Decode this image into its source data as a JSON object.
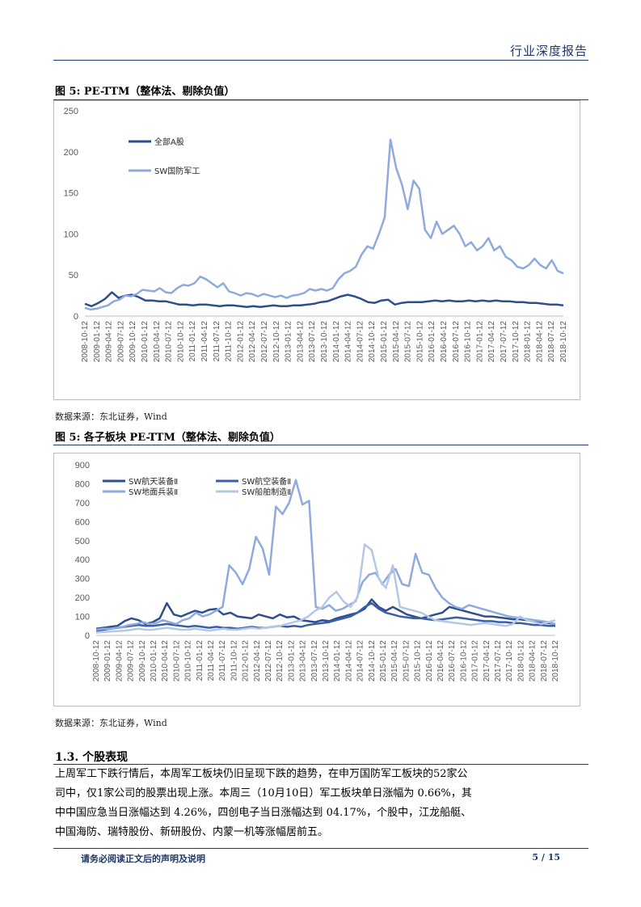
{
  "header": {
    "title": "行业深度报告"
  },
  "figure1": {
    "caption": "图 5:  PE-TTM（整体法、剔除负值）",
    "source": "数据来源：东北证券，Wind"
  },
  "figure2": {
    "caption": "图 5: 各子板块 PE-TTM（整体法、剔除负值）",
    "source": "数据来源：东北证券，Wind"
  },
  "section": {
    "heading": "1.3.  个股表现",
    "body": "上周军工下跌行情后，本周军工板块仍旧呈现下跌的趋势，在申万国防军工板块的52家公司中，仅1家公司的股票出现上涨。本周三（10月10日）军工板块单日涨幅为 0.66%，其中中国应急当日涨幅达到 4.26%，四创电子当日涨幅达到 04.17%，个股中，江龙船艇、中国海防、瑞特股份、新研股份、内蒙一机等涨幅居前五。"
  },
  "footer": {
    "disclaimer": "请务必阅读正文后的声明及说明",
    "page": "5 / 15"
  },
  "chart_data": [
    {
      "type": "line",
      "title": "",
      "ylim": [
        0,
        250
      ],
      "yticks": [
        0,
        50,
        100,
        150,
        200,
        250
      ],
      "x_labels": [
        "2008-10-12",
        "2009-01-12",
        "2009-04-12",
        "2009-07-12",
        "2009-10-12",
        "2010-01-12",
        "2010-04-12",
        "2010-07-12",
        "2010-10-12",
        "2011-01-12",
        "2011-04-12",
        "2011-07-12",
        "2011-10-12",
        "2012-01-12",
        "2012-04-12",
        "2012-07-12",
        "2012-10-12",
        "2013-01-12",
        "2013-04-12",
        "2013-07-12",
        "2013-10-12",
        "2014-01-12",
        "2014-04-12",
        "2014-07-12",
        "2014-10-12",
        "2015-01-12",
        "2015-04-12",
        "2015-07-12",
        "2015-10-12",
        "2016-01-12",
        "2016-04-12",
        "2016-07-12",
        "2016-10-12",
        "2017-01-12",
        "2017-04-12",
        "2017-07-12",
        "2017-10-12",
        "2018-01-12",
        "2018-04-12",
        "2018-07-12",
        "2018-10-12"
      ],
      "legend": "top-left",
      "series": [
        {
          "name": "全部A股",
          "color": "#2e4f8f",
          "values": [
            15,
            12,
            16,
            21,
            29,
            22,
            25,
            26,
            23,
            19,
            19,
            18,
            18,
            16,
            14,
            14,
            13,
            14,
            14,
            13,
            12,
            13,
            13,
            12,
            11,
            12,
            11,
            12,
            13,
            12,
            12,
            13,
            13,
            14,
            15,
            17,
            18,
            21,
            24,
            26,
            24,
            21,
            17,
            16,
            19,
            20,
            14,
            16,
            17,
            17,
            17,
            18,
            19,
            18,
            19,
            18,
            18,
            19,
            18,
            19,
            18,
            19,
            18,
            18,
            17,
            17,
            16,
            16,
            15,
            14,
            14,
            13
          ]
        },
        {
          "name": "SW国防军工",
          "color": "#8faadc",
          "values": [
            10,
            8,
            9,
            11,
            13,
            18,
            20,
            25,
            24,
            27,
            32,
            31,
            30,
            34,
            29,
            28,
            34,
            38,
            37,
            40,
            48,
            45,
            40,
            35,
            40,
            30,
            28,
            25,
            28,
            27,
            24,
            27,
            25,
            23,
            25,
            22,
            25,
            26,
            28,
            33,
            31,
            33,
            31,
            34,
            45,
            52,
            55,
            60,
            75,
            85,
            82,
            100,
            120,
            215,
            180,
            160,
            130,
            165,
            155,
            105,
            95,
            115,
            100,
            105,
            110,
            100,
            85,
            90,
            80,
            85,
            95,
            80,
            85,
            72,
            68,
            60,
            58,
            62,
            70,
            62,
            58,
            68,
            55,
            52
          ]
        }
      ]
    },
    {
      "type": "line",
      "title": "",
      "ylim": [
        0,
        900
      ],
      "yticks": [
        0,
        100,
        200,
        300,
        400,
        500,
        600,
        700,
        800,
        900
      ],
      "x_labels": [
        "2008-10-12",
        "2009-01-12",
        "2009-04-12",
        "2009-07-12",
        "2009-10-12",
        "2010-01-12",
        "2010-04-12",
        "2010-07-12",
        "2010-10-12",
        "2011-01-12",
        "2011-04-12",
        "2011-07-12",
        "2011-10-12",
        "2012-01-12",
        "2012-04-12",
        "2012-07-12",
        "2012-10-12",
        "2013-01-12",
        "2013-04-12",
        "2013-07-12",
        "2013-10-12",
        "2014-01-12",
        "2014-04-12",
        "2014-07-12",
        "2014-10-12",
        "2015-01-12",
        "2015-04-12",
        "2015-07-12",
        "2015-10-12",
        "2016-01-12",
        "2016-04-12",
        "2016-07-12",
        "2016-10-12",
        "2017-01-12",
        "2017-04-12",
        "2017-07-12",
        "2017-10-12",
        "2018-01-12",
        "2018-04-12",
        "2018-07-12",
        "2018-10-12"
      ],
      "legend": "top-left",
      "series": [
        {
          "name": "SW航天装备Ⅱ",
          "color": "#2e4f8f",
          "values": [
            35,
            40,
            45,
            50,
            75,
            90,
            80,
            60,
            70,
            90,
            170,
            110,
            100,
            115,
            130,
            120,
            135,
            140,
            110,
            120,
            100,
            95,
            90,
            110,
            100,
            90,
            110,
            95,
            100,
            80,
            75,
            70,
            80,
            75,
            90,
            100,
            110,
            120,
            140,
            190,
            150,
            130,
            150,
            130,
            110,
            100,
            90,
            100,
            110,
            120,
            150,
            140,
            130,
            120,
            110,
            100,
            100,
            95,
            90,
            85,
            85,
            80,
            75,
            70,
            65,
            60
          ]
        },
        {
          "name": "SW航空装备Ⅱ",
          "color": "#3a5fa8",
          "values": [
            25,
            30,
            35,
            40,
            45,
            50,
            55,
            50,
            50,
            55,
            60,
            55,
            50,
            45,
            50,
            45,
            40,
            45,
            40,
            40,
            35,
            40,
            45,
            40,
            40,
            45,
            50,
            45,
            50,
            45,
            55,
            60,
            65,
            70,
            80,
            90,
            100,
            120,
            150,
            170,
            140,
            120,
            110,
            100,
            95,
            90,
            90,
            85,
            80,
            85,
            90,
            95,
            90,
            85,
            80,
            75,
            75,
            70,
            70,
            65,
            65,
            60,
            55,
            55,
            50,
            50
          ]
        },
        {
          "name": "SW地面兵装Ⅱ",
          "color": "#8faadc",
          "values": [
            30,
            35,
            35,
            40,
            45,
            55,
            60,
            70,
            60,
            65,
            80,
            70,
            60,
            80,
            90,
            120,
            100,
            110,
            130,
            150,
            370,
            330,
            270,
            350,
            520,
            460,
            320,
            680,
            640,
            700,
            820,
            690,
            710,
            150,
            140,
            160,
            130,
            140,
            160,
            180,
            280,
            320,
            330,
            270,
            320,
            350,
            270,
            260,
            430,
            330,
            320,
            250,
            200,
            170,
            150,
            140,
            160,
            150,
            140,
            130,
            120,
            110,
            100,
            95,
            90,
            85,
            80,
            75,
            70,
            60
          ]
        },
        {
          "name": "SW船舶制造Ⅱ",
          "color": "#b4c7e7",
          "values": [
            15,
            18,
            20,
            22,
            25,
            30,
            35,
            30,
            30,
            35,
            40,
            35,
            30,
            30,
            35,
            30,
            25,
            30,
            35,
            30,
            30,
            35,
            40,
            35,
            40,
            45,
            50,
            60,
            70,
            80,
            100,
            130,
            150,
            200,
            230,
            180,
            150,
            200,
            480,
            450,
            300,
            250,
            370,
            150,
            140,
            130,
            120,
            100,
            80,
            75,
            70,
            65,
            60,
            55,
            60,
            65,
            60,
            55,
            50,
            60,
            100,
            80,
            70,
            60,
            70,
            80
          ]
        }
      ]
    }
  ]
}
